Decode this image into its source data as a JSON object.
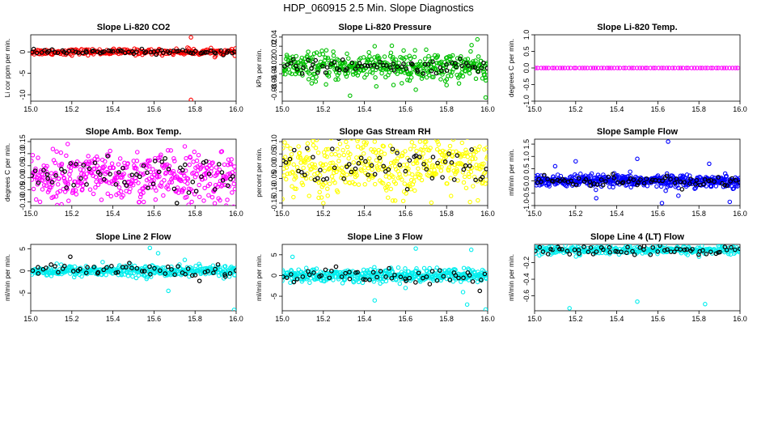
{
  "title": "HDP_060915  2.5 Min. Slope Diagnostics",
  "chart_data": [
    {
      "type": "scatter",
      "title": "Slope Li-820 CO2",
      "ylabel": "Li cor ppm per min.",
      "xlim": [
        15.0,
        16.0
      ],
      "ylim": [
        -11.5,
        4.0
      ],
      "xticks": [
        "15.0",
        "15.2",
        "15.4",
        "15.6",
        "15.8",
        "16.0"
      ],
      "yticks": [
        -10,
        -5,
        0
      ],
      "colors": {
        "main": "#ff0000",
        "highlight": "#000000"
      },
      "spread": 0.35,
      "highlight_spread": 0.25,
      "n_main": 260,
      "n_highlight": 70,
      "outliers": [
        [
          15.78,
          3.4
        ],
        [
          15.78,
          -11.2
        ],
        [
          15.77,
          0.8
        ]
      ]
    },
    {
      "type": "scatter",
      "title": "Slope Li-820 Pressure",
      "ylabel": "kPa per min.",
      "xlim": [
        15.0,
        16.0
      ],
      "ylim": [
        -0.1,
        0.045
      ],
      "xticks": [
        "15.0",
        "15.2",
        "15.4",
        "15.6",
        "15.8",
        "16.0"
      ],
      "yticks": [
        -0.08,
        -0.06,
        -0.04,
        -0.02,
        0.0,
        0.02,
        0.04
      ],
      "colors": {
        "main": "#00c000",
        "highlight": "#000000"
      },
      "center": -0.025,
      "spread": 0.015,
      "highlight_spread": 0.007,
      "n_main": 420,
      "n_highlight": 70,
      "outliers": [
        [
          15.33,
          -0.088
        ],
        [
          15.62,
          -0.055
        ],
        [
          15.65,
          -0.075
        ],
        [
          15.8,
          -0.065
        ],
        [
          15.99,
          -0.092
        ],
        [
          15.45,
          0.02
        ],
        [
          15.95,
          0.035
        ]
      ]
    },
    {
      "type": "scatter",
      "title": "Slope Li-820 Temp.",
      "ylabel": "degrees C per min.",
      "xlim": [
        15.0,
        16.0
      ],
      "ylim": [
        -1.0,
        1.0
      ],
      "xticks": [
        "15.0",
        "15.2",
        "15.4",
        "15.6",
        "15.8",
        "16.0"
      ],
      "yticks": [
        "-1.0",
        "-0.5",
        "0.0",
        "0.5",
        "1.0"
      ],
      "colors": {
        "main": "#ff00ff",
        "highlight": "#000000"
      },
      "center": 0.0,
      "spread": 0.0,
      "highlight_spread": 0.0,
      "n_main": 75,
      "n_highlight": 0,
      "outliers": []
    },
    {
      "type": "scatter",
      "title": "Slope Amb. Box Temp.",
      "ylabel": "degrees C per min.",
      "xlim": [
        15.0,
        16.0
      ],
      "ylim": [
        -0.115,
        0.16
      ],
      "xticks": [
        "15.0",
        "15.2",
        "15.4",
        "15.6",
        "15.8",
        "16.0"
      ],
      "yticks": [
        "-0.10",
        "-0.05",
        "0.00",
        "0.05",
        "0.10",
        "0.15"
      ],
      "colors": {
        "main": "#ff00ff",
        "highlight": "#000000"
      },
      "center": 0.0,
      "spread": 0.05,
      "highlight_spread": 0.04,
      "n_main": 430,
      "n_highlight": 60,
      "outliers": [
        [
          15.18,
          0.14
        ],
        [
          15.15,
          -0.11
        ],
        [
          15.75,
          0.13
        ],
        [
          15.55,
          -0.1
        ]
      ]
    },
    {
      "type": "scatter",
      "title": "Slope Gas Stream RH",
      "ylabel": "percent per min.",
      "xlim": [
        15.0,
        16.0
      ],
      "ylim": [
        -0.16,
        0.11
      ],
      "xticks": [
        "15.0",
        "15.2",
        "15.4",
        "15.6",
        "15.8",
        "16.0"
      ],
      "yticks": [
        "-0.15",
        "-0.10",
        "-0.05",
        "0.00",
        "0.05",
        "0.10"
      ],
      "colors": {
        "main": "#ffff00",
        "highlight": "#000000"
      },
      "center": 0.0,
      "spread": 0.06,
      "highlight_spread": 0.045,
      "n_main": 430,
      "n_highlight": 60,
      "outliers": [
        [
          15.2,
          -0.15
        ],
        [
          15.55,
          -0.14
        ],
        [
          15.45,
          0.1
        ],
        [
          15.7,
          0.1
        ]
      ]
    },
    {
      "type": "scatter",
      "title": "Slope Sample Flow",
      "ylabel": "ml/min per min.",
      "xlim": [
        15.0,
        16.0
      ],
      "ylim": [
        -1.0,
        1.7
      ],
      "xticks": [
        "15.0",
        "15.2",
        "15.4",
        "15.6",
        "15.8",
        "16.0"
      ],
      "yticks": [
        "-1.0",
        "-0.5",
        "0.0",
        "0.5",
        "1.0",
        "1.5"
      ],
      "colors": {
        "main": "#0000ff",
        "highlight": "#000000"
      },
      "center": 0.0,
      "spread": 0.12,
      "highlight_spread": 0.1,
      "n_main": 480,
      "n_highlight": 70,
      "outliers": [
        [
          15.65,
          1.6
        ],
        [
          15.2,
          0.8
        ],
        [
          15.5,
          0.9
        ],
        [
          15.62,
          -0.9
        ],
        [
          15.95,
          -0.85
        ],
        [
          15.85,
          0.7
        ],
        [
          15.3,
          -0.7
        ],
        [
          15.1,
          0.6
        ],
        [
          15.7,
          -0.6
        ]
      ]
    },
    {
      "type": "scatter",
      "title": "Slope Line 2 Flow",
      "ylabel": "ml/min per min.",
      "xlim": [
        15.0,
        16.0
      ],
      "ylim": [
        -9.0,
        6.0
      ],
      "xticks": [
        "15.0",
        "15.2",
        "15.4",
        "15.6",
        "15.8",
        "16.0"
      ],
      "yticks": [
        -5,
        0,
        5
      ],
      "colors": {
        "main": "#00eeee",
        "highlight": "#000000"
      },
      "center": 0.0,
      "spread": 0.6,
      "highlight_spread": 0.9,
      "n_main": 380,
      "n_highlight": 55,
      "outliers": [
        [
          15.99,
          -8.8
        ],
        [
          15.67,
          -4.5
        ],
        [
          15.62,
          4.0
        ],
        [
          15.58,
          5.2
        ],
        [
          15.35,
          2.0
        ],
        [
          15.75,
          2.5
        ]
      ]
    },
    {
      "type": "scatter",
      "title": "Slope Line 3 Flow",
      "ylabel": "ml/min per min.",
      "xlim": [
        15.0,
        16.0
      ],
      "ylim": [
        -8.5,
        7.5
      ],
      "xticks": [
        "15.0",
        "15.2",
        "15.4",
        "15.6",
        "15.8",
        "16.0"
      ],
      "yticks": [
        -5,
        0,
        5
      ],
      "colors": {
        "main": "#00eeee",
        "highlight": "#000000"
      },
      "center": 0.0,
      "spread": 0.8,
      "highlight_spread": 1.2,
      "n_main": 420,
      "n_highlight": 55,
      "outliers": [
        [
          15.99,
          -8.2
        ],
        [
          15.9,
          -7.0
        ],
        [
          15.92,
          6.2
        ],
        [
          15.65,
          6.5
        ],
        [
          15.45,
          -6.0
        ],
        [
          15.05,
          4.5
        ],
        [
          15.6,
          -3.0
        ],
        [
          15.88,
          -4.0
        ]
      ]
    },
    {
      "type": "scatter",
      "title": "Slope Line 4 (LT) Flow",
      "ylabel": "ml/min per min.",
      "xlim": [
        15.0,
        16.0
      ],
      "ylim": [
        -0.78,
        0.02
      ],
      "xticks": [
        "15.0",
        "15.2",
        "15.4",
        "15.6",
        "15.8",
        "16.0"
      ],
      "yticks": [
        "-0.6",
        "-0.4",
        "-0.2"
      ],
      "colors": {
        "main": "#00eeee",
        "highlight": "#000000"
      },
      "center": -0.05,
      "spread": 0.025,
      "highlight_spread": 0.03,
      "n_main": 300,
      "n_highlight": 60,
      "outliers": [
        [
          15.17,
          -0.75
        ],
        [
          15.5,
          -0.67
        ],
        [
          15.83,
          -0.7
        ],
        [
          15.1,
          -0.02
        ]
      ]
    }
  ]
}
